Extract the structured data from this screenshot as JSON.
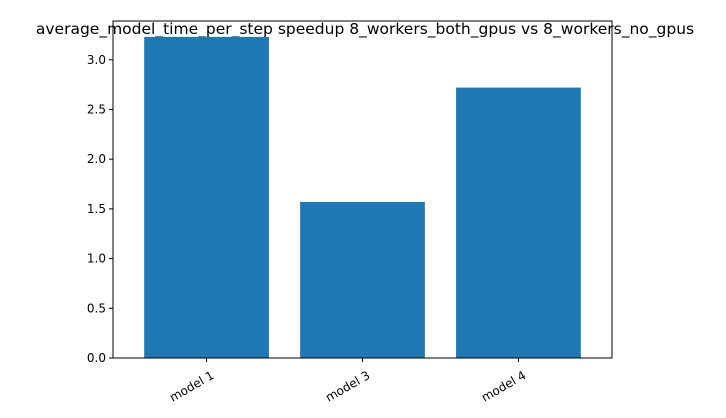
{
  "chart_data": {
    "type": "bar",
    "title": "average_model_time_per_step speedup 8_workers_both_gpus vs 8_workers_no_gpus",
    "xlabel": "",
    "ylabel": "",
    "categories": [
      "model 1",
      "model 3",
      "model 4"
    ],
    "values": [
      3.23,
      1.57,
      2.72
    ],
    "ylim": [
      0,
      3.39
    ],
    "yticks": [
      0.0,
      0.5,
      1.0,
      1.5,
      2.0,
      2.5,
      3.0
    ],
    "ytick_labels": [
      "0.0",
      "0.5",
      "1.0",
      "1.5",
      "2.0",
      "2.5",
      "3.0"
    ],
    "grid": false,
    "bar_color": "#1f77b4"
  }
}
